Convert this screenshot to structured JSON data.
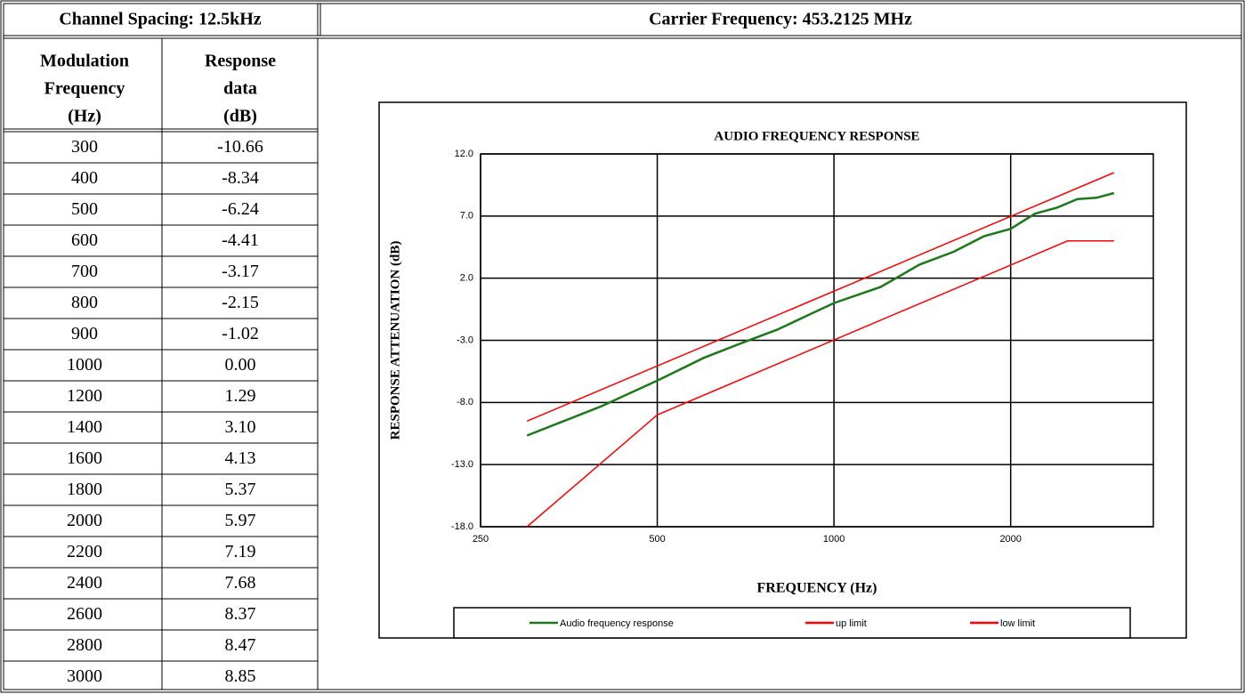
{
  "header": {
    "channel_spacing": "Channel Spacing: 12.5kHz",
    "carrier": "Carrier Frequency: 453.2125 MHz"
  },
  "table": {
    "columns": [
      [
        "Modulation",
        "Frequency",
        "(Hz)"
      ],
      [
        "Response",
        "data",
        "(dB)"
      ]
    ],
    "rows": [
      [
        "300",
        "-10.66"
      ],
      [
        "400",
        "-8.34"
      ],
      [
        "500",
        "-6.24"
      ],
      [
        "600",
        "-4.41"
      ],
      [
        "700",
        "-3.17"
      ],
      [
        "800",
        "-2.15"
      ],
      [
        "900",
        "-1.02"
      ],
      [
        "1000",
        "0.00"
      ],
      [
        "1200",
        "1.29"
      ],
      [
        "1400",
        "3.10"
      ],
      [
        "1600",
        "4.13"
      ],
      [
        "1800",
        "5.37"
      ],
      [
        "2000",
        "5.97"
      ],
      [
        "2200",
        "7.19"
      ],
      [
        "2400",
        "7.68"
      ],
      [
        "2600",
        "8.37"
      ],
      [
        "2800",
        "8.47"
      ],
      [
        "3000",
        "8.85"
      ]
    ]
  },
  "chart_data": {
    "type": "line",
    "title": "AUDIO FREQUENCY RESPONSE",
    "x_label": "FREQUENCY (Hz)",
    "y_label": "RESPONSE ATTENUATION (dB)",
    "x_scale": "log",
    "xlim": [
      250,
      3500
    ],
    "xticks": [
      250,
      500,
      1000,
      2000
    ],
    "ylim": [
      -18,
      12
    ],
    "yticks": [
      {
        "value": 12,
        "label": "12.0"
      },
      {
        "value": 7,
        "label": "7.0"
      },
      {
        "value": 2,
        "label": "2.0"
      },
      {
        "value": -3,
        "label": "-3.0"
      },
      {
        "value": -8,
        "label": "-8.0"
      },
      {
        "value": -13,
        "label": "-13.0"
      },
      {
        "value": -18,
        "label": "-18.0"
      }
    ],
    "grid": true,
    "legend": "bottom",
    "series": [
      {
        "name": "Audio frequency response",
        "color": "#1a7a1a",
        "x": [
          300,
          400,
          500,
          600,
          700,
          800,
          900,
          1000,
          1200,
          1400,
          1600,
          1800,
          2000,
          2200,
          2400,
          2600,
          2800,
          3000
        ],
        "values": [
          -10.66,
          -8.34,
          -6.24,
          -4.41,
          -3.17,
          -2.15,
          -1.02,
          0.0,
          1.29,
          3.1,
          4.13,
          5.37,
          5.97,
          7.19,
          7.68,
          8.37,
          8.47,
          8.85
        ]
      },
      {
        "name": "up limit",
        "color": "#ff0000",
        "x": [
          300,
          3000
        ],
        "values": [
          -9.5,
          10.5
        ]
      },
      {
        "name": "low limit",
        "color": "#ff0000",
        "x": [
          300,
          500,
          2500,
          3000
        ],
        "values": [
          -18,
          -9,
          5,
          5
        ]
      }
    ]
  }
}
